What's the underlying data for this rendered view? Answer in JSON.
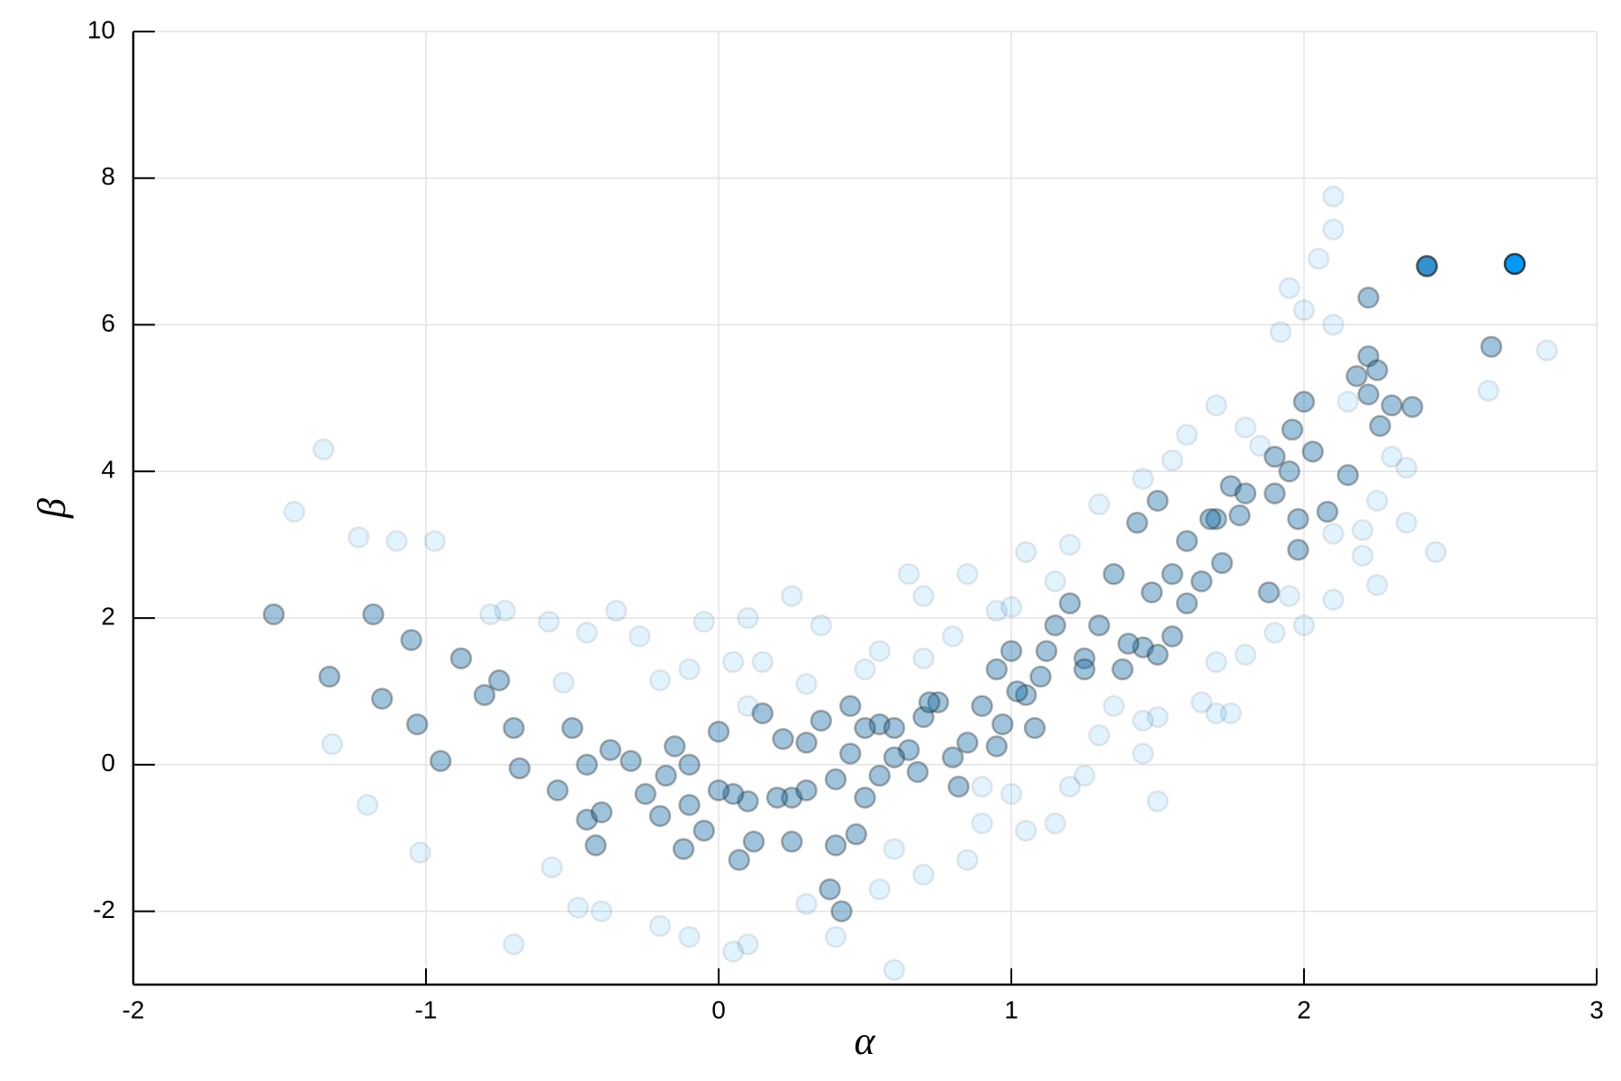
{
  "chart_data": {
    "type": "scatter",
    "x_label": "α",
    "y_label": "β",
    "xlim": [
      -2,
      3
    ],
    "ylim": [
      -3,
      10
    ],
    "xticks": [
      -2,
      -1,
      0,
      1,
      2,
      3
    ],
    "yticks": [
      -2,
      0,
      2,
      4,
      6,
      8,
      10
    ],
    "grid": true,
    "series": [
      {
        "color": "#009afa",
        "opacity": 0.12,
        "x": [
          -1.45,
          -1.23,
          -1.1,
          -0.97,
          -1.32,
          -1.2,
          -1.02,
          -0.57,
          -0.48,
          -0.4,
          -0.2,
          -0.1,
          -0.58,
          -0.53,
          -0.45,
          -0.35,
          -0.27,
          -0.2,
          -0.1,
          0.05,
          0.1,
          0.3,
          0.5,
          0.55,
          0.7,
          0.8,
          0.85,
          0.95,
          1.0,
          1.05,
          1.15,
          1.2,
          1.3,
          1.45,
          1.55,
          1.6,
          1.7,
          1.8,
          1.85,
          2.0,
          2.1,
          1.95,
          2.05,
          2.1,
          1.92,
          2.15,
          2.25,
          2.3,
          2.35,
          2.63,
          2.83,
          2.1,
          2.2,
          2.2,
          2.1,
          1.95,
          2.0,
          1.9,
          1.8,
          1.7,
          1.7,
          1.65,
          1.5,
          1.45,
          1.3,
          1.25,
          1.15,
          1.05,
          0.9,
          0.85,
          0.7,
          0.6,
          0.55,
          0.3,
          0.1,
          0.05,
          0.4,
          0.6,
          -0.7,
          -1.35,
          -0.73,
          -0.78,
          0.7,
          0.65,
          0.9,
          1.0,
          1.2,
          1.35,
          1.45,
          1.5,
          1.75,
          2.25,
          2.35,
          2.45,
          2.1,
          0.25,
          0.1,
          -0.05,
          0.35,
          0.15
        ],
        "values": [
          3.45,
          3.1,
          3.05,
          3.05,
          0.28,
          -0.55,
          -1.2,
          -1.4,
          -1.95,
          -2.0,
          -2.2,
          -2.35,
          1.95,
          1.12,
          1.8,
          2.1,
          1.75,
          1.15,
          1.3,
          1.4,
          0.8,
          1.1,
          1.3,
          1.55,
          1.45,
          1.75,
          2.6,
          2.1,
          2.15,
          2.9,
          2.5,
          3.0,
          3.55,
          3.9,
          4.15,
          4.5,
          4.9,
          4.6,
          4.35,
          6.2,
          6.0,
          6.5,
          6.9,
          7.3,
          5.9,
          4.95,
          3.6,
          4.2,
          4.05,
          5.1,
          5.65,
          3.15,
          3.2,
          2.85,
          2.25,
          2.3,
          1.9,
          1.8,
          1.5,
          1.4,
          0.7,
          0.85,
          0.65,
          0.6,
          0.4,
          -0.15,
          -0.8,
          -0.9,
          -0.8,
          -1.3,
          -1.5,
          -1.15,
          -1.7,
          -1.9,
          -2.45,
          -2.55,
          -2.35,
          -2.8,
          -2.45,
          4.3,
          2.1,
          2.05,
          2.3,
          2.6,
          -0.3,
          -0.4,
          -0.3,
          0.8,
          0.15,
          -0.5,
          0.7,
          2.45,
          3.3,
          2.9,
          7.75,
          2.3,
          2.0,
          1.95,
          1.9,
          1.4
        ]
      },
      {
        "color": "#1b6fa8",
        "opacity": 0.42,
        "x": [
          2.0,
          2.22,
          2.22,
          2.18,
          2.25,
          2.22,
          2.3,
          2.37,
          2.26,
          1.96,
          1.9,
          1.95,
          2.03,
          1.98,
          1.98,
          2.08,
          2.15,
          2.64,
          1.75,
          1.8,
          1.7,
          1.72,
          1.65,
          1.6,
          1.55,
          1.48,
          1.45,
          1.4,
          1.5,
          1.55,
          1.35,
          1.3,
          1.25,
          1.2,
          1.15,
          1.1,
          1.05,
          1.0,
          0.95,
          0.97,
          0.95,
          1.08,
          0.9,
          0.85,
          0.8,
          0.75,
          0.7,
          0.65,
          0.6,
          0.55,
          0.5,
          0.45,
          0.4,
          0.35,
          0.3,
          0.25,
          0.3,
          0.2,
          0.1,
          0.05,
          0.0,
          -0.05,
          -0.1,
          -0.12,
          -0.2,
          -0.18,
          -0.25,
          -0.3,
          -0.15,
          -0.1,
          0.0,
          -0.45,
          -0.45,
          -0.4,
          -0.42,
          -0.55,
          -0.68,
          -0.7,
          -0.75,
          -0.8,
          -0.88,
          -0.95,
          -1.03,
          -1.05,
          -1.15,
          -1.18,
          -1.33,
          -1.52,
          -0.37,
          -0.5,
          0.45,
          0.55,
          0.5,
          0.47,
          0.4,
          0.38,
          0.42,
          0.25,
          0.12,
          0.07,
          0.15,
          0.22,
          0.6,
          0.68,
          0.72,
          0.82,
          1.12,
          1.02,
          1.25,
          1.38,
          1.43,
          1.5,
          1.6,
          1.68,
          1.78,
          1.88,
          1.9
        ],
        "values": [
          4.95,
          6.37,
          5.57,
          5.3,
          5.38,
          5.05,
          4.9,
          4.88,
          4.62,
          4.57,
          4.2,
          4.0,
          4.27,
          3.35,
          2.93,
          3.45,
          3.95,
          5.7,
          3.8,
          3.7,
          3.35,
          2.75,
          2.5,
          2.2,
          2.6,
          2.35,
          1.6,
          1.65,
          1.5,
          1.75,
          2.6,
          1.9,
          1.45,
          2.2,
          1.9,
          1.2,
          0.95,
          1.55,
          1.3,
          0.55,
          0.25,
          0.5,
          0.8,
          0.3,
          0.1,
          0.85,
          0.65,
          0.2,
          0.1,
          0.55,
          0.5,
          0.15,
          -0.2,
          0.6,
          0.3,
          -0.45,
          -0.35,
          -0.45,
          -0.5,
          -0.4,
          -0.35,
          -0.9,
          -0.55,
          -1.15,
          -0.7,
          -0.15,
          -0.4,
          0.05,
          0.25,
          0.0,
          0.45,
          0.0,
          -0.75,
          -0.65,
          -1.1,
          -0.35,
          -0.05,
          0.5,
          1.15,
          0.95,
          1.45,
          0.05,
          0.55,
          1.7,
          0.9,
          2.05,
          1.2,
          2.05,
          0.2,
          0.5,
          0.8,
          -0.15,
          -0.45,
          -0.95,
          -1.1,
          -1.7,
          -2.0,
          -1.05,
          -1.05,
          -1.3,
          0.7,
          0.35,
          0.5,
          -0.1,
          0.85,
          -0.3,
          1.55,
          1.0,
          1.3,
          1.3,
          3.3,
          3.6,
          3.05,
          3.35,
          3.4,
          2.35,
          3.7
        ]
      },
      {
        "color": "#0f7fc6",
        "opacity": 0.85,
        "x": [
          2.42
        ],
        "values": [
          6.8
        ]
      },
      {
        "color": "#009afa",
        "opacity": 1,
        "x": [
          2.72
        ],
        "values": [
          6.83
        ]
      }
    ]
  }
}
